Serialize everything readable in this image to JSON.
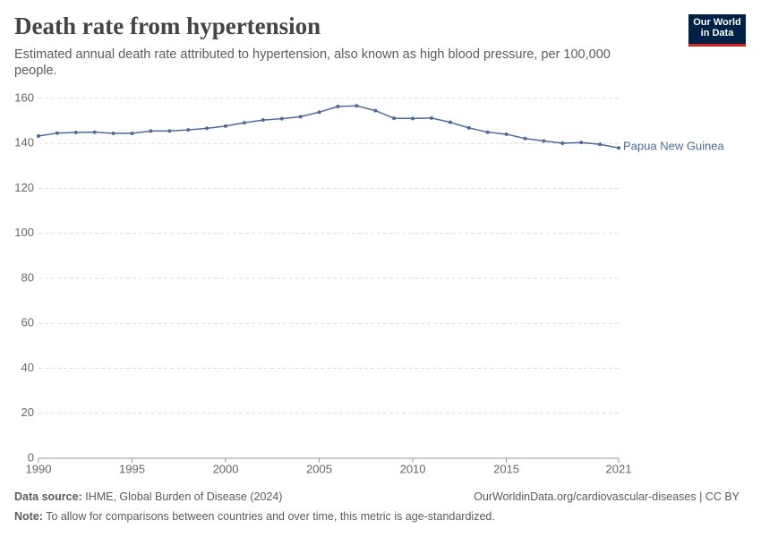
{
  "chart_data": {
    "type": "line",
    "title": "Death rate from hypertension",
    "subtitle": "Estimated annual death rate attributed to hypertension, also known as high blood pressure, per 100,000 people.",
    "x": [
      1990,
      1991,
      1992,
      1993,
      1994,
      1995,
      1996,
      1997,
      1998,
      1999,
      2000,
      2001,
      2002,
      2003,
      2004,
      2005,
      2006,
      2007,
      2008,
      2009,
      2010,
      2011,
      2012,
      2013,
      2014,
      2015,
      2016,
      2017,
      2018,
      2019,
      2020,
      2021
    ],
    "series": [
      {
        "name": "Papua New Guinea",
        "color": "#4c6a9c",
        "values": [
          143.3,
          144.6,
          144.9,
          145.0,
          144.5,
          144.5,
          145.5,
          145.5,
          146.0,
          146.7,
          147.7,
          149.2,
          150.4,
          151.0,
          151.9,
          153.9,
          156.4,
          156.7,
          154.6,
          151.2,
          151.1,
          151.3,
          149.4,
          146.9,
          145.0,
          144.1,
          142.2,
          141.1,
          140.1,
          140.4,
          139.6,
          138.0
        ]
      }
    ],
    "xlim": [
      1990,
      2021
    ],
    "xticks": [
      1990,
      1995,
      2000,
      2005,
      2010,
      2015,
      2021
    ],
    "ylim": [
      0,
      160
    ],
    "yticks": [
      0,
      20,
      40,
      60,
      80,
      100,
      120,
      140,
      160
    ],
    "grid": true
  },
  "logo": {
    "line1": "Our World",
    "line2": "in Data"
  },
  "footer": {
    "source_label": "Data source:",
    "source": "IHME, Global Burden of Disease (2024)",
    "url": "OurWorldinData.org/cardiovascular-diseases | CC BY",
    "note_label": "Note:",
    "note": "To allow for comparisons between countries and over time, this metric is age-standardized."
  }
}
